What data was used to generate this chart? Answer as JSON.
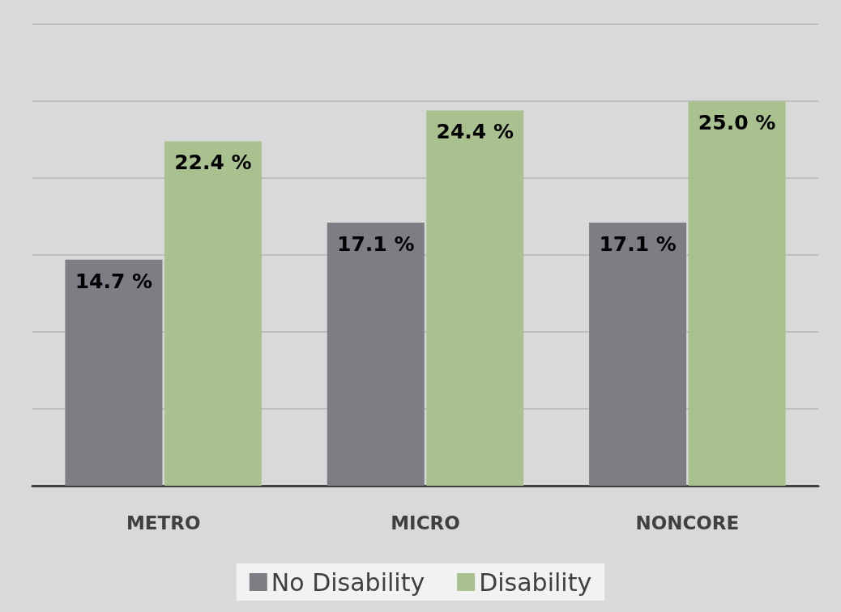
{
  "chart_data": {
    "type": "bar",
    "categories": [
      "METRO",
      "MICRO",
      "NONCORE"
    ],
    "series": [
      {
        "name": "No Disability",
        "color": "#7f7d84",
        "values": [
          14.7,
          17.1,
          17.1
        ],
        "value_labels": [
          "14.7 %",
          "17.1 %",
          "17.1 %"
        ]
      },
      {
        "name": "Disability",
        "color": "#a9c18f",
        "values": [
          22.4,
          24.4,
          25.0
        ],
        "value_labels": [
          "22.4 %",
          "24.4 %",
          "25.0 %"
        ]
      }
    ],
    "ylim": [
      0,
      30
    ],
    "yticks": [
      {
        "value": 0,
        "label": null
      },
      {
        "value": 5,
        "label": null
      },
      {
        "value": 10,
        "label": null
      },
      {
        "value": 15,
        "label": null
      },
      {
        "value": 20,
        "label": null
      },
      {
        "value": 25,
        "label": null
      },
      {
        "value": 30,
        "label": null
      }
    ],
    "tick_labels": "x",
    "grid": "y",
    "legend": "bottom"
  }
}
